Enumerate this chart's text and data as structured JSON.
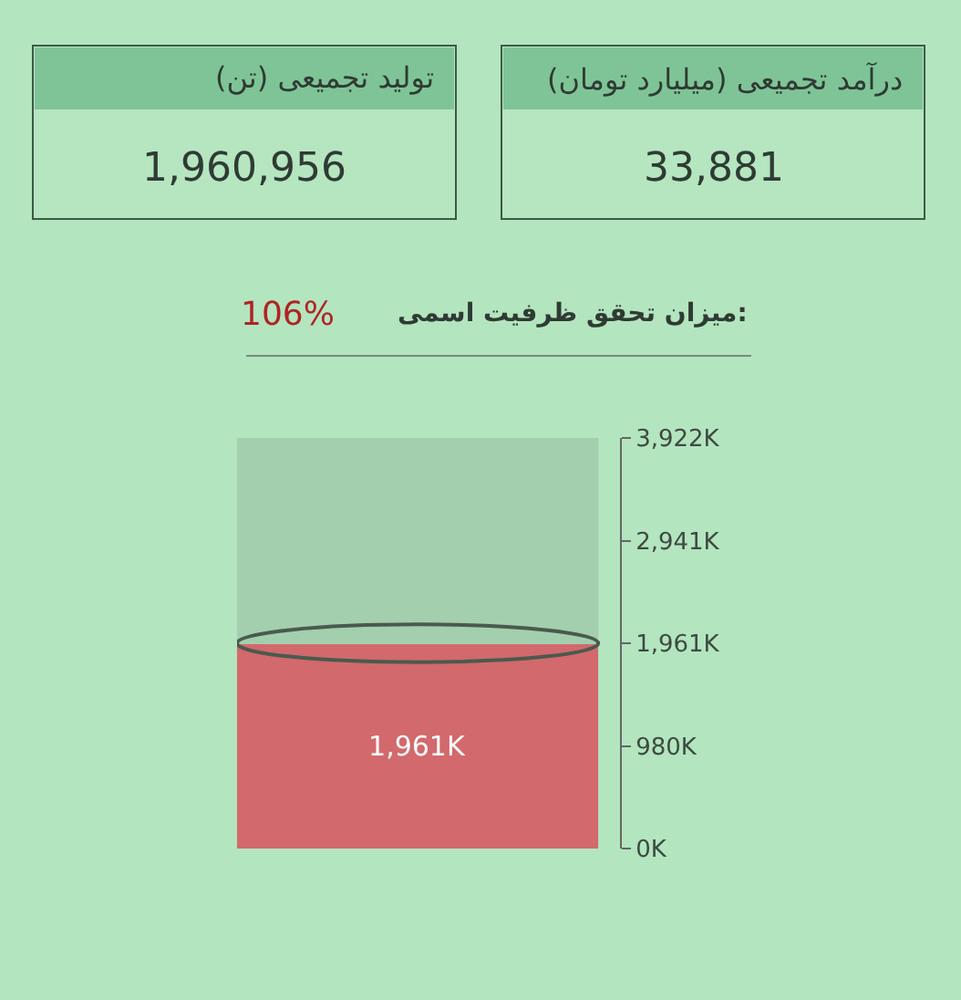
{
  "chart_data": [
    {
      "type": "other",
      "title": "تولید تجمیعی (تن)",
      "annotations": [
        "1,960,956"
      ]
    },
    {
      "type": "other",
      "title": "درآمد تجمیعی (میلیارد تومان)",
      "annotations": [
        "33,881"
      ]
    },
    {
      "type": "bar",
      "title": "میزان تحقق ظرفیت اسمی:",
      "annotations": [
        "106%"
      ],
      "categories": [
        null
      ],
      "values": [
        1961
      ],
      "value_labels": [
        "1,961K"
      ],
      "color": "#d2696c",
      "ylim": [
        0,
        3922
      ],
      "yticks": [
        {
          "value": 0,
          "label": "0K"
        },
        {
          "value": 980,
          "label": "980K"
        },
        {
          "value": 1961,
          "label": "1,961K"
        },
        {
          "value": 2941,
          "label": "2,941K"
        },
        {
          "value": 3922,
          "label": "3,922K"
        }
      ],
      "grid": false
    }
  ]
}
